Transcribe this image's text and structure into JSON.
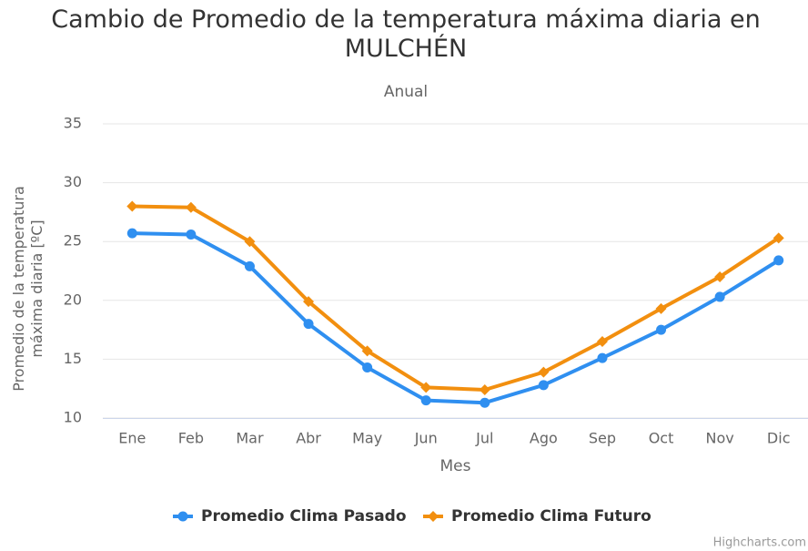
{
  "chart_data": {
    "type": "line",
    "title": "Cambio de Promedio de la temperatura máxima diaria en MULCHÉN",
    "subtitle": "Anual",
    "x_label": "Mes",
    "y_label": "Promedio de la temperatura máxima diaria [ºC]",
    "credits": "Highcharts.com",
    "categories": [
      "Ene",
      "Feb",
      "Mar",
      "Abr",
      "May",
      "Jun",
      "Jul",
      "Ago",
      "Sep",
      "Oct",
      "Nov",
      "Dic"
    ],
    "series": [
      {
        "name": "Promedio Clima Pasado",
        "color": "#2f8ff0",
        "marker": "circle",
        "values": [
          25.7,
          25.6,
          22.9,
          18.0,
          14.3,
          11.5,
          11.3,
          12.8,
          15.1,
          17.5,
          20.3,
          23.4
        ]
      },
      {
        "name": "Promedio Clima Futuro",
        "color": "#f28f0f",
        "marker": "diamond",
        "values": [
          28.0,
          27.9,
          25.0,
          19.9,
          15.7,
          12.6,
          12.4,
          13.9,
          16.5,
          19.3,
          22.0,
          25.3
        ]
      }
    ],
    "ylim": [
      10,
      35
    ],
    "yticks": [
      10,
      15,
      20,
      25,
      30,
      35
    ],
    "grid": true
  }
}
